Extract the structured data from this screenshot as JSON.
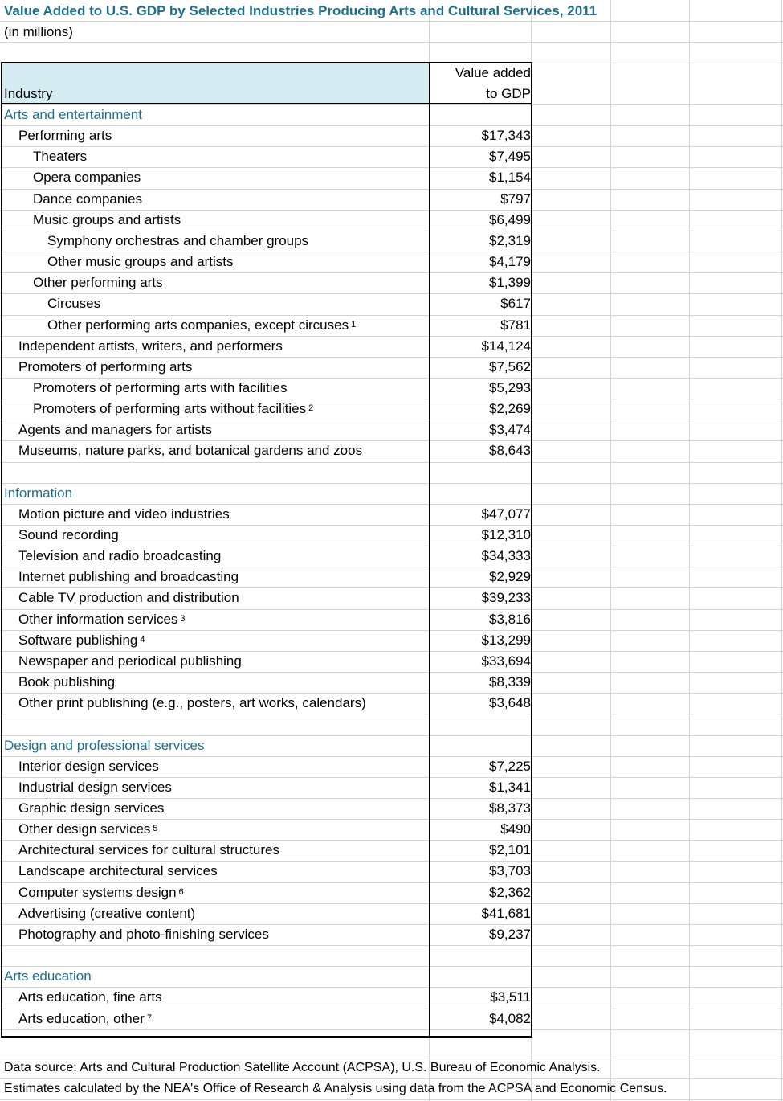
{
  "title": "Value Added to U.S. GDP by Selected Industries Producing Arts and Cultural Services, 2011",
  "subtitle": "(in millions)",
  "header": {
    "industry": "Industry",
    "value_line1": "Value added",
    "value_line2": "to GDP"
  },
  "rows": [
    {
      "label": "Arts and entertainment",
      "value": "",
      "indent": 0,
      "section": true,
      "fn": ""
    },
    {
      "label": "Performing arts",
      "value": "$17,343",
      "indent": 1,
      "fn": ""
    },
    {
      "label": "Theaters",
      "value": "$7,495",
      "indent": 2,
      "fn": ""
    },
    {
      "label": "Opera companies",
      "value": "$1,154",
      "indent": 2,
      "fn": ""
    },
    {
      "label": "Dance companies",
      "value": "$797",
      "indent": 2,
      "fn": ""
    },
    {
      "label": "Music groups and artists",
      "value": "$6,499",
      "indent": 2,
      "fn": ""
    },
    {
      "label": "Symphony orchestras and chamber groups",
      "value": "$2,319",
      "indent": 3,
      "fn": ""
    },
    {
      "label": "Other music groups and artists",
      "value": "$4,179",
      "indent": 3,
      "fn": ""
    },
    {
      "label": "Other performing arts",
      "value": "$1,399",
      "indent": 2,
      "fn": ""
    },
    {
      "label": "Circuses",
      "value": "$617",
      "indent": 3,
      "fn": ""
    },
    {
      "label": "Other performing arts companies, except circuses",
      "value": "$781",
      "indent": 3,
      "fn": "1"
    },
    {
      "label": "Independent artists, writers, and performers",
      "value": "$14,124",
      "indent": 1,
      "fn": ""
    },
    {
      "label": "Promoters of performing arts",
      "value": "$7,562",
      "indent": 1,
      "fn": ""
    },
    {
      "label": "Promoters of performing arts with facilities",
      "value": "$5,293",
      "indent": 2,
      "fn": ""
    },
    {
      "label": "Promoters of performing arts without facilities",
      "value": "$2,269",
      "indent": 2,
      "fn": "2"
    },
    {
      "label": "Agents and managers for artists",
      "value": "$3,474",
      "indent": 1,
      "fn": ""
    },
    {
      "label": "Museums, nature parks, and botanical gardens and zoos",
      "value": "$8,643",
      "indent": 1,
      "fn": ""
    },
    {
      "label": "",
      "value": "",
      "indent": 0,
      "fn": ""
    },
    {
      "label": "Information",
      "value": "",
      "indent": 0,
      "section": true,
      "fn": ""
    },
    {
      "label": "Motion picture and video industries",
      "value": "$47,077",
      "indent": 1,
      "fn": ""
    },
    {
      "label": "Sound recording",
      "value": "$12,310",
      "indent": 1,
      "fn": ""
    },
    {
      "label": "Television and radio broadcasting",
      "value": "$34,333",
      "indent": 1,
      "fn": ""
    },
    {
      "label": "Internet publishing and broadcasting",
      "value": "$2,929",
      "indent": 1,
      "fn": ""
    },
    {
      "label": "Cable TV production and distribution",
      "value": "$39,233",
      "indent": 1,
      "fn": ""
    },
    {
      "label": "Other information services",
      "value": "$3,816",
      "indent": 1,
      "fn": "3"
    },
    {
      "label": "Software publishing",
      "value": "$13,299",
      "indent": 1,
      "fn": "4"
    },
    {
      "label": "Newspaper and periodical publishing",
      "value": "$33,694",
      "indent": 1,
      "fn": ""
    },
    {
      "label": "Book publishing",
      "value": "$8,339",
      "indent": 1,
      "fn": ""
    },
    {
      "label": "Other print publishing (e.g., posters, art works, calendars)",
      "value": "$3,648",
      "indent": 1,
      "fn": ""
    },
    {
      "label": "",
      "value": "",
      "indent": 0,
      "fn": ""
    },
    {
      "label": "Design and professional services",
      "value": "",
      "indent": 0,
      "section": true,
      "fn": ""
    },
    {
      "label": "Interior design services",
      "value": "$7,225",
      "indent": 1,
      "fn": ""
    },
    {
      "label": "Industrial design services",
      "value": "$1,341",
      "indent": 1,
      "fn": ""
    },
    {
      "label": "Graphic design services",
      "value": "$8,373",
      "indent": 1,
      "fn": ""
    },
    {
      "label": "Other design services",
      "value": "$490",
      "indent": 1,
      "fn": "5"
    },
    {
      "label": "Architectural services for cultural structures",
      "value": "$2,101",
      "indent": 1,
      "fn": ""
    },
    {
      "label": "Landscape architectural services",
      "value": "$3,703",
      "indent": 1,
      "fn": ""
    },
    {
      "label": "Computer systems design",
      "value": "$2,362",
      "indent": 1,
      "fn": "6"
    },
    {
      "label": "Advertising (creative content)",
      "value": "$41,681",
      "indent": 1,
      "fn": ""
    },
    {
      "label": "Photography and photo-finishing services",
      "value": "$9,237",
      "indent": 1,
      "fn": ""
    },
    {
      "label": "",
      "value": "",
      "indent": 0,
      "fn": ""
    },
    {
      "label": "Arts education",
      "value": "",
      "indent": 0,
      "section": true,
      "fn": ""
    },
    {
      "label": "Arts education, fine arts",
      "value": "$3,511",
      "indent": 1,
      "fn": ""
    },
    {
      "label": "Arts education, other",
      "value": "$4,082",
      "indent": 1,
      "fn": "7"
    }
  ],
  "footnotes": [
    "Data source: Arts and Cultural Production Satellite Account (ACPSA), U.S. Bureau of Economic Analysis.",
    "Estimates calculated by the NEA's Office of Research & Analysis using data from the ACPSA and Economic Census."
  ],
  "colors": {
    "section": "#1f6f8b",
    "header_bg": "#d4ecf2",
    "grid": "#d4d4d4"
  }
}
